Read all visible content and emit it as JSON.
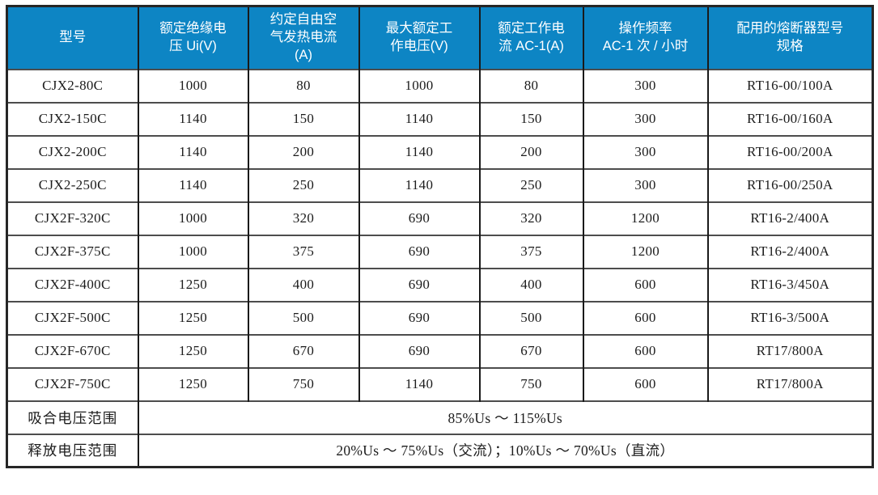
{
  "colors": {
    "header_bg": "#0d85c4",
    "header_text": "#ffffff",
    "body_text": "#1c1c1c",
    "grid_vertical": "#1a1a1a",
    "grid_horizontal": "#4d4d4d",
    "outer_border": "#262626",
    "page_bg": "#ffffff"
  },
  "table": {
    "columns": [
      "型号",
      "额定绝缘电\n压 Ui(V)",
      "约定自由空\n气发热电流\n(A)",
      "最大额定工\n作电压(V)",
      "额定工作电\n流 AC-1(A)",
      "操作频率\nAC-1 次 / 小时",
      "配用的熔断器型号\n规格"
    ],
    "rows": [
      [
        "CJX2-80C",
        "1000",
        "80",
        "1000",
        "80",
        "300",
        "RT16-00/100A"
      ],
      [
        "CJX2-150C",
        "1140",
        "150",
        "1140",
        "150",
        "300",
        "RT16-00/160A"
      ],
      [
        "CJX2-200C",
        "1140",
        "200",
        "1140",
        "200",
        "300",
        "RT16-00/200A"
      ],
      [
        "CJX2-250C",
        "1140",
        "250",
        "1140",
        "250",
        "300",
        "RT16-00/250A"
      ],
      [
        "CJX2F-320C",
        "1000",
        "320",
        "690",
        "320",
        "1200",
        "RT16-2/400A"
      ],
      [
        "CJX2F-375C",
        "1000",
        "375",
        "690",
        "375",
        "1200",
        "RT16-2/400A"
      ],
      [
        "CJX2F-400C",
        "1250",
        "400",
        "690",
        "400",
        "600",
        "RT16-3/450A"
      ],
      [
        "CJX2F-500C",
        "1250",
        "500",
        "690",
        "500",
        "600",
        "RT16-3/500A"
      ],
      [
        "CJX2F-670C",
        "1250",
        "670",
        "690",
        "670",
        "600",
        "RT17/800A"
      ],
      [
        "CJX2F-750C",
        "1250",
        "750",
        "1140",
        "750",
        "600",
        "RT17/800A"
      ]
    ],
    "footer_rows": [
      {
        "label": "吸合电压范围",
        "value": "85%Us ～ 115%Us"
      },
      {
        "label": "释放电压范围",
        "value": "20%Us ～ 75%Us（交流）；10%Us ～ 70%Us（直流）"
      }
    ]
  }
}
